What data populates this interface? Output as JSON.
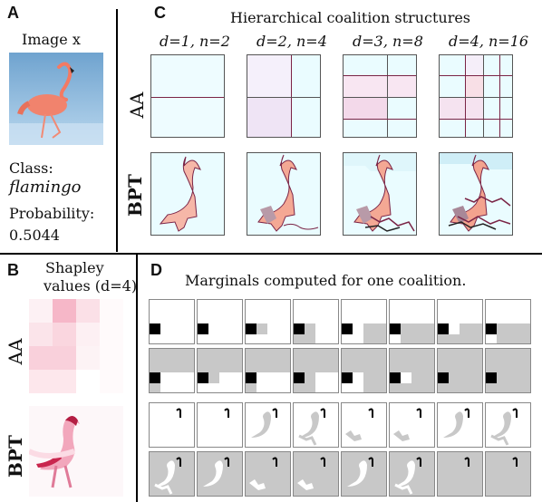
{
  "panel_a": {
    "label": "A",
    "image_caption": "Image x",
    "class_label": "Class:",
    "class_value": "flamingo",
    "prob_label": "Probability:",
    "prob_value": "0.5044"
  },
  "panel_b": {
    "label": "B",
    "title_line1": "Shapley",
    "title_line2": "values (d=4)",
    "rows": [
      "AA",
      "BPT"
    ]
  },
  "panel_c": {
    "label": "C",
    "title": "Hierarchical coalition structures",
    "columns": [
      "d=1, n=2",
      "d=2, n=4",
      "d=3, n=8",
      "d=4, n=16"
    ],
    "rows": [
      "AA",
      "BPT"
    ]
  },
  "panel_d": {
    "label": "D",
    "title": "Marginals computed for one coalition."
  }
}
